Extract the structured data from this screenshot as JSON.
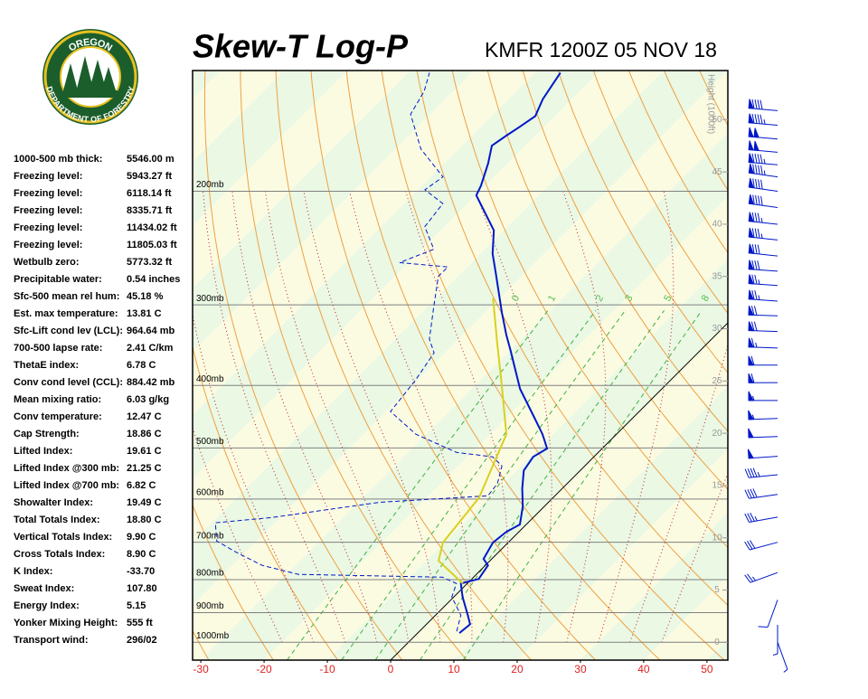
{
  "chart_data": {
    "type": "skewt",
    "title": "Skew-T Log-P",
    "subtitle": "KMFR 1200Z 05 NOV 18",
    "xlim": [
      -31.3,
      53.3
    ],
    "xticks": [
      -30,
      -20,
      -10,
      0,
      10,
      20,
      30,
      40,
      50
    ],
    "ylim": [
      1066,
      130
    ],
    "ylog": true,
    "yticks": [
      {
        "value": 1000,
        "label": "1000mb"
      },
      {
        "value": 900,
        "label": "900mb"
      },
      {
        "value": 800,
        "label": "800mb"
      },
      {
        "value": 700,
        "label": "700mb"
      },
      {
        "value": 600,
        "label": "600mb"
      },
      {
        "value": 500,
        "label": "500mb"
      },
      {
        "value": 400,
        "label": "400mb"
      },
      {
        "value": 300,
        "label": "300mb"
      },
      {
        "value": 200,
        "label": "200mb"
      }
    ],
    "y2label": "Height (1000ft)",
    "y2lim": [
      -1.7,
      54.7
    ],
    "y2ticks": [
      0,
      5,
      10,
      15,
      20,
      25,
      30,
      35,
      40,
      45,
      50
    ],
    "mixing_ratio_labels": [
      0,
      1,
      2,
      3,
      5,
      8
    ],
    "series": [
      {
        "color": "#0018c8",
        "style": "solid",
        "pressure": [
          968,
          938,
          908,
          851,
          811,
          798,
          760,
          743,
          701,
          675,
          657,
          616,
          578,
          542,
          516,
          501,
          476,
          446,
          405,
          351,
          334,
          308,
          266,
          250,
          230,
          213,
          203,
          196,
          181,
          170,
          164,
          159,
          153,
          144,
          131
        ],
        "values": [
          6.6,
          6.9,
          5.1,
          1.4,
          -1.0,
          1.1,
          0.4,
          -1.3,
          -2.4,
          -2.0,
          -1.0,
          -3.4,
          -6.3,
          -8.9,
          -9.6,
          -8.7,
          -11.7,
          -16,
          -22.4,
          -30.3,
          -33.1,
          -37.4,
          -44.9,
          -48.1,
          -51.6,
          -56.7,
          -59.9,
          -60.7,
          -63.1,
          -65.3,
          -64.6,
          -63.9,
          -63.1,
          -64.6,
          -66
        ]
      },
      {
        "color": "#0018c8",
        "style": "dashed",
        "pressure": [
          962,
          908,
          851,
          811,
          793,
          785,
          760,
          724,
          697,
          653,
          641,
          607,
          593,
          568,
          533,
          516,
          508,
          476,
          439,
          393,
          356,
          339,
          303,
          271,
          262,
          258,
          246,
          227,
          209,
          199,
          190,
          172,
          152,
          140,
          131
        ],
        "values": [
          5.9,
          4.0,
          -0.3,
          -1.7,
          -4.9,
          -28.1,
          -35.3,
          -41.7,
          -46.3,
          -49.4,
          -41.4,
          -26.7,
          -10.6,
          -11,
          -13.1,
          -16,
          -22.4,
          -31.7,
          -39.3,
          -40.3,
          -41.7,
          -44.6,
          -48.9,
          -53.1,
          -53.1,
          -61.4,
          -58.1,
          -63.1,
          -63.9,
          -68.9,
          -68.1,
          -76,
          -83.1,
          -84.6,
          -86.7
        ]
      },
      {
        "color": "#d8d020",
        "style": "solid",
        "pressure": [
          811,
          748,
          701,
          597,
          476,
          393,
          345,
          293
        ],
        "values": [
          -0.7,
          -8.1,
          -10.3,
          -11.7,
          -17.4,
          -26.7,
          -33.1,
          -41
        ]
      }
    ],
    "winds": {
      "color": "#0018c8",
      "pressure": [
        150,
        158,
        166,
        174,
        182,
        190,
        200,
        212,
        225,
        238,
        252,
        266,
        280,
        296,
        312,
        330,
        350,
        372,
        396,
        422,
        450,
        480,
        515,
        550,
        590,
        640,
        700,
        780,
        860,
        940,
        1000
      ],
      "direction": [
        275,
        275,
        275,
        275,
        275,
        278,
        278,
        278,
        276,
        276,
        276,
        274,
        274,
        274,
        272,
        272,
        272,
        270,
        270,
        270,
        268,
        268,
        266,
        264,
        262,
        260,
        255,
        250,
        200,
        180,
        160
      ],
      "speed": [
        90,
        95,
        100,
        100,
        95,
        95,
        90,
        90,
        85,
        85,
        80,
        80,
        75,
        75,
        70,
        70,
        65,
        60,
        60,
        55,
        55,
        50,
        50,
        45,
        40,
        35,
        30,
        25,
        10,
        5,
        5
      ]
    }
  },
  "logo": {
    "top": "OREGON",
    "bottom": "DEPARTMENT OF FORESTRY"
  },
  "indices": [
    {
      "label": "1000-500 mb thick:",
      "value": "5546.00 m"
    },
    {
      "label": "Freezing level:",
      "value": "5943.27 ft"
    },
    {
      "label": "Freezing level:",
      "value": "6118.14 ft"
    },
    {
      "label": "Freezing level:",
      "value": "8335.71 ft"
    },
    {
      "label": "Freezing level:",
      "value": "11434.02 ft"
    },
    {
      "label": "Freezing level:",
      "value": "11805.03 ft"
    },
    {
      "label": "Wetbulb zero:",
      "value": "5773.32 ft"
    },
    {
      "label": "Precipitable water:",
      "value": "0.54 inches"
    },
    {
      "label": "Sfc-500 mean rel hum:",
      "value": "45.18 %"
    },
    {
      "label": "Est. max temperature:",
      "value": "13.81 C"
    },
    {
      "label": "Sfc-Lift cond lev (LCL):",
      "value": "964.64 mb"
    },
    {
      "label": "700-500 lapse rate:",
      "value": "2.41 C/km"
    },
    {
      "label": "ThetaE index:",
      "value": "6.78 C"
    },
    {
      "label": "Conv cond level (CCL):",
      "value": "884.42 mb"
    },
    {
      "label": "Mean mixing ratio:",
      "value": "6.03 g/kg"
    },
    {
      "label": "Conv temperature:",
      "value": "12.47 C"
    },
    {
      "label": "Cap Strength:",
      "value": "18.86 C"
    },
    {
      "label": "Lifted Index:",
      "value": "19.61 C"
    },
    {
      "label": "Lifted Index @300 mb:",
      "value": "21.25 C"
    },
    {
      "label": "Lifted Index @700 mb:",
      "value": "6.82 C"
    },
    {
      "label": "Showalter Index:",
      "value": "19.49 C"
    },
    {
      "label": "Total Totals Index:",
      "value": "18.80 C"
    },
    {
      "label": "Vertical Totals Index:",
      "value": "9.90 C"
    },
    {
      "label": "Cross Totals Index:",
      "value": "8.90 C"
    },
    {
      "label": "K Index:",
      "value": "-33.70"
    },
    {
      "label": "Sweat Index:",
      "value": "107.80"
    },
    {
      "label": "Energy Index:",
      "value": "5.15"
    },
    {
      "label": "Yonker Mixing Height:",
      "value": "555 ft"
    },
    {
      "label": "Transport wind:",
      "value": "296/02"
    }
  ]
}
